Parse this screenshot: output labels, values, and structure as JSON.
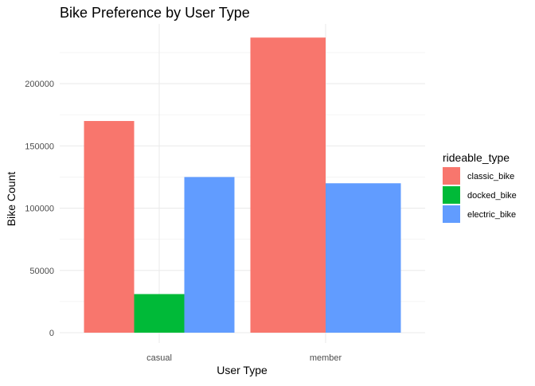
{
  "chart_data": {
    "type": "bar",
    "title": "Bike Preference by User Type",
    "xlabel": "User Type",
    "ylabel": "Bike Count",
    "categories": [
      "casual",
      "member"
    ],
    "series": [
      {
        "name": "classic_bike",
        "color": "#F8766D",
        "values": [
          170000,
          237000
        ]
      },
      {
        "name": "docked_bike",
        "color": "#00BA38",
        "values": [
          31000,
          null
        ]
      },
      {
        "name": "electric_bike",
        "color": "#619CFF",
        "values": [
          125000,
          120000
        ]
      }
    ],
    "yticks": [
      0,
      50000,
      100000,
      150000,
      200000
    ],
    "ytick_labels": [
      "0",
      "50000",
      "100000",
      "150000",
      "200000"
    ],
    "ylim": [
      0,
      248000
    ],
    "grid": true,
    "legend": {
      "title": "rideable_type",
      "position": "right"
    }
  }
}
